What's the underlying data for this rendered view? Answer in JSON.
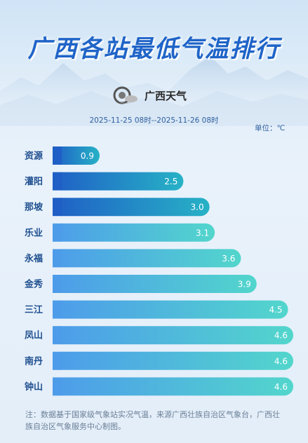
{
  "title": "广西各站最低气温排行",
  "logo": {
    "name": "广西天气",
    "icon": "weather-service-logo-icon"
  },
  "date_range": "2025-11-25 08时--2025-11-26 08时",
  "unit_label": "单位：℃",
  "footnote": "注：数据基于国家级气象站实况气温，来源广西壮族自治区气象台，广西壮族自治区气象服务中心制图。",
  "colors": {
    "title": "#1f64c8",
    "bar_dark_start": "#1f5fc6",
    "bar_dark_end": "#27b2c6",
    "bar_light_start": "#4d9cea",
    "bar_light_end": "#52d6cc",
    "station_label": "#1f4f8f"
  },
  "chart_data": {
    "type": "bar",
    "orientation": "horizontal",
    "categories": [
      "资源",
      "灌阳",
      "那坡",
      "乐业",
      "永福",
      "金秀",
      "三江",
      "凤山",
      "南丹",
      "钟山"
    ],
    "values": [
      0.9,
      2.5,
      3.0,
      3.1,
      3.6,
      3.9,
      4.5,
      4.6,
      4.6,
      4.6
    ],
    "value_labels": [
      "0.9",
      "2.5",
      "3.0",
      "3.1",
      "3.6",
      "3.9",
      "4.5",
      "4.6",
      "4.6",
      "4.6"
    ],
    "xlim": [
      0,
      4.6
    ],
    "grid": false,
    "legend": "none"
  }
}
